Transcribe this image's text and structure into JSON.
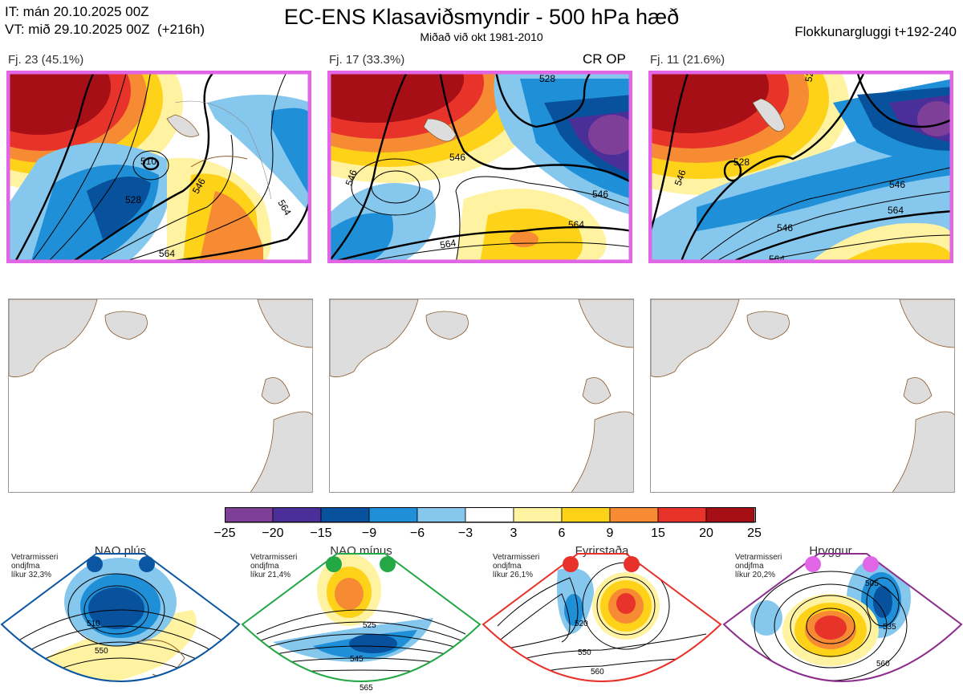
{
  "header": {
    "it_line": "IT: mán 20.10.2025 00Z",
    "vt_line": "VT: mið 29.10.2025 00Z  (+216h)",
    "title": "EC-ENS Klasaviðsmyndir - 500 hPa hæð",
    "subtitle": "Miðað við okt 1981-2010",
    "window": "Flokkunargluggi t+192-240"
  },
  "clusters": [
    {
      "label": "Fj. 23 (45.1%)",
      "contours": [
        "510",
        "528",
        "546",
        "546",
        "564",
        "546",
        "564",
        "546"
      ],
      "marker": ""
    },
    {
      "label": "Fj. 17 (33.3%)",
      "contours": [
        "528",
        "546",
        "546",
        "546",
        "564",
        "564",
        "546"
      ],
      "marker": "CR OP"
    },
    {
      "label": "Fj. 11 (21.6%)",
      "contours": [
        "528",
        "528",
        "546",
        "546",
        "564",
        "564",
        "546"
      ],
      "marker": ""
    }
  ],
  "colorbar": {
    "ticks": [
      "−25",
      "−20",
      "−15",
      "−9",
      "−6",
      "−3",
      "3",
      "6",
      "9",
      "15",
      "20",
      "25"
    ],
    "colors": [
      "#7e3f98",
      "#4a2f99",
      "#08519c",
      "#1f8fd8",
      "#86c7ee",
      "#ffffff",
      "#fff2a0",
      "#ffd21a",
      "#f68b34",
      "#e8332b",
      "#a50f15"
    ]
  },
  "regimes": [
    {
      "name": "NAO plús",
      "info": "Vetrarmisseri\nondjfma\nlíkur 32,3%",
      "color": "#0b56a3",
      "contours": [
        "510",
        "550"
      ]
    },
    {
      "name": "NAO mínus",
      "info": "Vetrarmisseri\nondjfma\nlíkur 21,4%",
      "color": "#23a845",
      "contours": [
        "525",
        "545",
        "565"
      ]
    },
    {
      "name": "Fyrirstaða",
      "info": "Vetrarmisseri\nondjfma\nlíkur 26,1%",
      "color": "#e8312a",
      "contours": [
        "520",
        "550",
        "560"
      ]
    },
    {
      "name": "Hryggur",
      "info": "Vetrarmisseri\nondjfma\nlíkur 20,2%",
      "color": "#e066e6",
      "contours": [
        "505",
        "535",
        "560"
      ]
    }
  ]
}
